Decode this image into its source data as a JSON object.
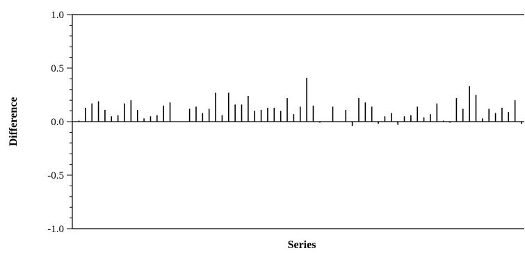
{
  "chart_data": {
    "type": "bar",
    "xlabel": "Series",
    "ylabel": "Difference",
    "ylim": [
      -1.0,
      1.0
    ],
    "yticks": [
      "1.0",
      "0.5",
      "0.0",
      "-0.5",
      "-1.0"
    ],
    "grid": false,
    "legend": "none",
    "color": "#000000",
    "values": [
      0.01,
      0.13,
      0.17,
      0.19,
      0.11,
      0.05,
      0.06,
      0.17,
      0.2,
      0.11,
      0.03,
      0.05,
      0.06,
      0.15,
      0.18,
      0.0,
      0.0,
      0.12,
      0.14,
      0.08,
      0.12,
      0.27,
      0.06,
      0.27,
      0.16,
      0.16,
      0.24,
      0.1,
      0.11,
      0.13,
      0.13,
      0.1,
      0.22,
      0.07,
      0.14,
      0.41,
      0.15,
      -0.01,
      0.0,
      0.14,
      0.0,
      0.11,
      -0.04,
      0.22,
      0.18,
      0.14,
      -0.02,
      0.05,
      0.08,
      -0.03,
      0.05,
      0.06,
      0.14,
      0.04,
      0.07,
      0.17,
      0.01,
      -0.01,
      0.22,
      0.12,
      0.33,
      0.25,
      0.03,
      0.12,
      0.08,
      0.13,
      0.09,
      0.2,
      -0.02
    ]
  }
}
